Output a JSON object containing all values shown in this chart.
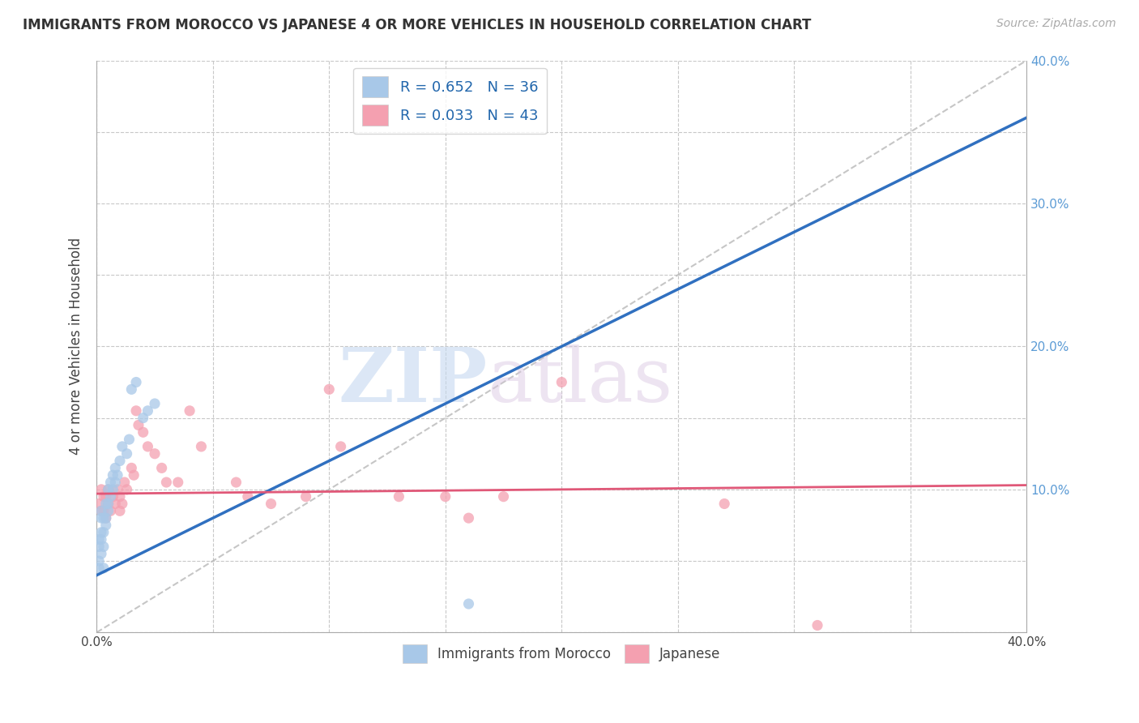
{
  "title": "IMMIGRANTS FROM MOROCCO VS JAPANESE 4 OR MORE VEHICLES IN HOUSEHOLD CORRELATION CHART",
  "source": "Source: ZipAtlas.com",
  "ylabel_left": "4 or more Vehicles in Household",
  "xlim": [
    0.0,
    0.4
  ],
  "ylim": [
    0.0,
    0.4
  ],
  "xticks": [
    0.0,
    0.05,
    0.1,
    0.15,
    0.2,
    0.25,
    0.3,
    0.35,
    0.4
  ],
  "yticks": [
    0.0,
    0.05,
    0.1,
    0.15,
    0.2,
    0.25,
    0.3,
    0.35,
    0.4
  ],
  "xticklabels": [
    "0.0%",
    "",
    "",
    "",
    "",
    "",
    "",
    "",
    "40.0%"
  ],
  "yticklabels_right": [
    "",
    "",
    "10.0%",
    "",
    "20.0%",
    "",
    "30.0%",
    "",
    "40.0%"
  ],
  "grid_color": "#c8c8c8",
  "background_color": "#ffffff",
  "watermark_zip": "ZIP",
  "watermark_atlas": "atlas",
  "legend1_label": "R = 0.652   N = 36",
  "legend2_label": "R = 0.033   N = 43",
  "legend_label_morocco": "Immigrants from Morocco",
  "legend_label_japanese": "Japanese",
  "blue_color": "#a8c8e8",
  "pink_color": "#f4a0b0",
  "blue_line_color": "#3070c0",
  "pink_line_color": "#e05878",
  "diag_line_color": "#b8b8b8",
  "scatter_size": 90,
  "blue_line_x0": 0.0,
  "blue_line_y0": 0.04,
  "blue_line_x1": 0.4,
  "blue_line_y1": 0.36,
  "pink_line_x0": 0.0,
  "pink_line_y0": 0.097,
  "pink_line_x1": 0.4,
  "pink_line_y1": 0.103,
  "morocco_x": [
    0.001,
    0.001,
    0.001,
    0.001,
    0.002,
    0.002,
    0.002,
    0.002,
    0.002,
    0.003,
    0.003,
    0.003,
    0.003,
    0.004,
    0.004,
    0.004,
    0.005,
    0.005,
    0.005,
    0.006,
    0.006,
    0.007,
    0.007,
    0.008,
    0.008,
    0.009,
    0.01,
    0.011,
    0.013,
    0.014,
    0.015,
    0.017,
    0.02,
    0.022,
    0.025,
    0.16
  ],
  "morocco_y": [
    0.045,
    0.05,
    0.06,
    0.065,
    0.055,
    0.065,
    0.07,
    0.08,
    0.085,
    0.045,
    0.06,
    0.07,
    0.08,
    0.075,
    0.08,
    0.09,
    0.085,
    0.09,
    0.1,
    0.095,
    0.105,
    0.1,
    0.11,
    0.105,
    0.115,
    0.11,
    0.12,
    0.13,
    0.125,
    0.135,
    0.17,
    0.175,
    0.15,
    0.155,
    0.16,
    0.02
  ],
  "japanese_x": [
    0.001,
    0.002,
    0.002,
    0.003,
    0.003,
    0.004,
    0.004,
    0.005,
    0.005,
    0.006,
    0.007,
    0.008,
    0.009,
    0.01,
    0.01,
    0.011,
    0.012,
    0.013,
    0.015,
    0.016,
    0.017,
    0.018,
    0.02,
    0.022,
    0.025,
    0.028,
    0.03,
    0.035,
    0.04,
    0.045,
    0.06,
    0.065,
    0.075,
    0.09,
    0.1,
    0.105,
    0.13,
    0.15,
    0.16,
    0.175,
    0.2,
    0.27,
    0.31
  ],
  "japanese_y": [
    0.09,
    0.085,
    0.1,
    0.085,
    0.095,
    0.08,
    0.095,
    0.09,
    0.1,
    0.085,
    0.095,
    0.09,
    0.1,
    0.085,
    0.095,
    0.09,
    0.105,
    0.1,
    0.115,
    0.11,
    0.155,
    0.145,
    0.14,
    0.13,
    0.125,
    0.115,
    0.105,
    0.105,
    0.155,
    0.13,
    0.105,
    0.095,
    0.09,
    0.095,
    0.17,
    0.13,
    0.095,
    0.095,
    0.08,
    0.095,
    0.175,
    0.09,
    0.005
  ]
}
